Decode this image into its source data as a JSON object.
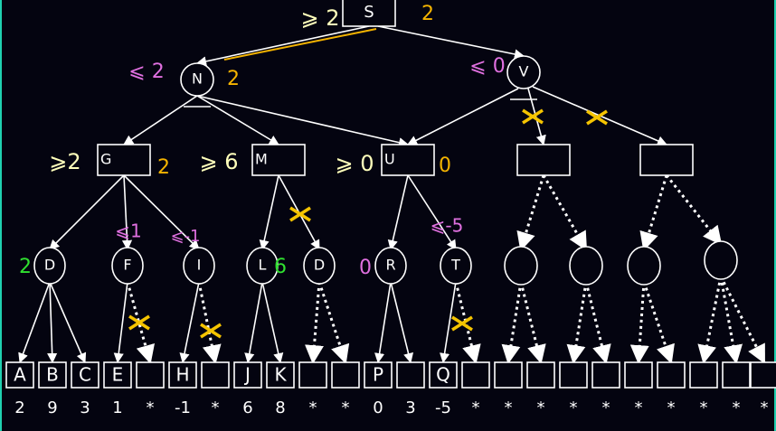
{
  "colors": {
    "background": "#040410",
    "edge": "#ffffff",
    "ge_text": "#ffffbb",
    "value": "#f5b400",
    "le_text": "#e070e0",
    "leaf_value": "#30e030",
    "prune_mark": "#f5c400"
  },
  "root": {
    "label": "S",
    "bound": "⩾ 2",
    "value": "2"
  },
  "level1": [
    {
      "label": "N",
      "bound": "⩽ 2",
      "value": "2"
    },
    {
      "label": "V",
      "bound": "⩽ 0",
      "value": ""
    }
  ],
  "level2": [
    {
      "label": "G",
      "bound": "⩾2",
      "value": "2"
    },
    {
      "label": "M",
      "bound": "⩾ 6",
      "value": ""
    },
    {
      "label": "U",
      "bound": "⩾ 0",
      "value": "0"
    },
    {
      "label": "",
      "bound": "",
      "value": ""
    },
    {
      "label": "",
      "bound": "",
      "value": ""
    }
  ],
  "level3": [
    {
      "label": "D",
      "bound": "",
      "value": "2"
    },
    {
      "label": "F",
      "bound": "⩽1",
      "value": ""
    },
    {
      "label": "I",
      "bound": "⩽-1",
      "value": ""
    },
    {
      "label": "L",
      "bound": "",
      "value": "6"
    },
    {
      "label": "D",
      "bound": "",
      "value": ""
    },
    {
      "label": "R",
      "bound": "",
      "value": "0"
    },
    {
      "label": "T",
      "bound": "⩽-5",
      "value": ""
    },
    {
      "label": "",
      "bound": "",
      "value": ""
    },
    {
      "label": "",
      "bound": "",
      "value": ""
    },
    {
      "label": "",
      "bound": "",
      "value": ""
    },
    {
      "label": "",
      "bound": "",
      "value": ""
    }
  ],
  "leaves": [
    {
      "label": "A",
      "value": "2"
    },
    {
      "label": "B",
      "value": "9"
    },
    {
      "label": "C",
      "value": "3"
    },
    {
      "label": "E",
      "value": "1"
    },
    {
      "label": "",
      "value": "*"
    },
    {
      "label": "H",
      "value": "-1"
    },
    {
      "label": "",
      "value": "*"
    },
    {
      "label": "J",
      "value": "6"
    },
    {
      "label": "K",
      "value": "8"
    },
    {
      "label": "",
      "value": "*"
    },
    {
      "label": "",
      "value": "*"
    },
    {
      "label": "P",
      "value": "0"
    },
    {
      "label": "",
      "value": "3"
    },
    {
      "label": "Q",
      "value": "-5"
    },
    {
      "label": "",
      "value": "*"
    },
    {
      "label": "",
      "value": "*"
    },
    {
      "label": "",
      "value": "*"
    },
    {
      "label": "",
      "value": "*"
    },
    {
      "label": "",
      "value": "*"
    },
    {
      "label": "",
      "value": "*"
    },
    {
      "label": "",
      "value": "*"
    },
    {
      "label": "",
      "value": "*"
    },
    {
      "label": "",
      "value": "*"
    },
    {
      "label": "",
      "value": "*"
    }
  ]
}
